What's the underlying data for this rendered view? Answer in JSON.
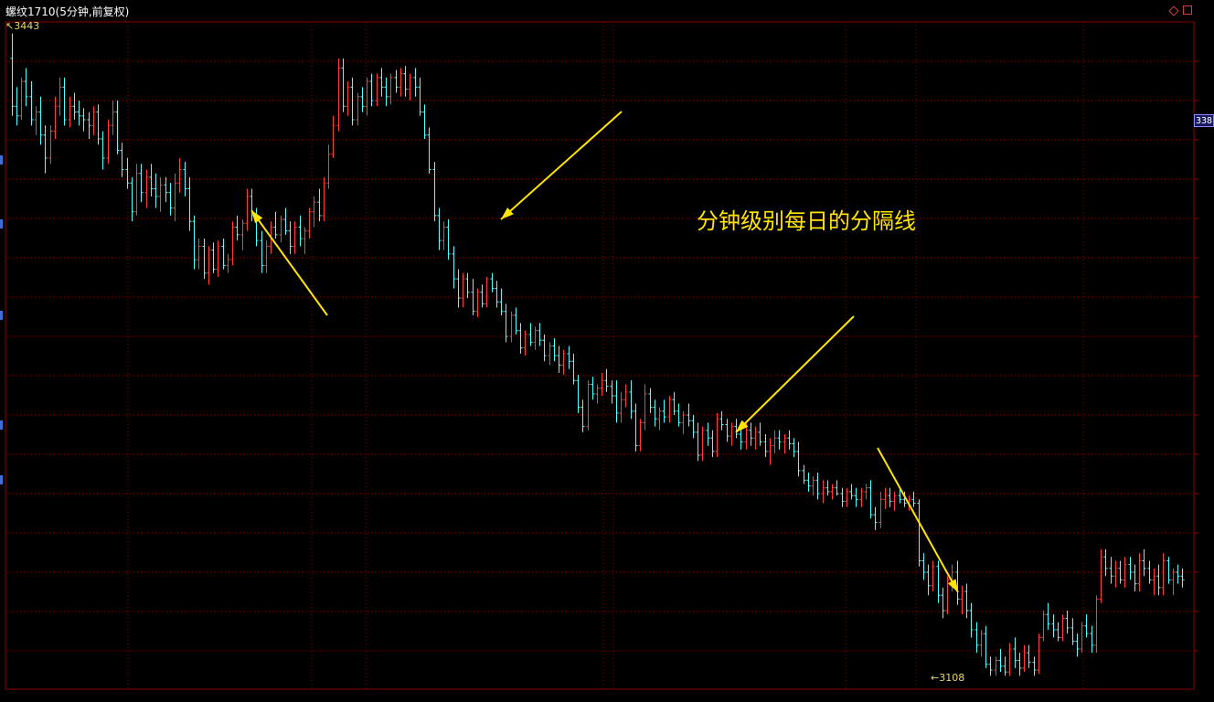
{
  "header": {
    "title": "螺纹1710(5分钟,前复权)",
    "high_marker": "3443",
    "low_marker": "3108",
    "price_tag": "338"
  },
  "annotation": {
    "text": "分钟级别每日的分隔线"
  },
  "colors": {
    "up": "#ff3b3b",
    "down": "#54ffff",
    "flat": "#ffffff",
    "grid": "#8b0000",
    "arrow": "#ffe600",
    "background": "#000000"
  },
  "chart_data": {
    "type": "ohlc",
    "title": "螺纹1710(5分钟,前复权)",
    "ylim": [
      3101,
      3449
    ],
    "day_separators_after_bar": [
      62,
      125,
      188
    ],
    "highest": 3443,
    "lowest": 3108,
    "bars": [
      [
        3430,
        3443,
        3400,
        3405
      ],
      [
        3405,
        3415,
        3395,
        3400
      ],
      [
        3400,
        3420,
        3398,
        3418
      ],
      [
        3418,
        3425,
        3405,
        3410
      ],
      [
        3410,
        3418,
        3395,
        3398
      ],
      [
        3398,
        3405,
        3390,
        3402
      ],
      [
        3402,
        3410,
        3385,
        3390
      ],
      [
        3390,
        3395,
        3370,
        3378
      ],
      [
        3378,
        3395,
        3375,
        3392
      ],
      [
        3392,
        3410,
        3388,
        3405
      ],
      [
        3405,
        3420,
        3400,
        3415
      ],
      [
        3415,
        3420,
        3395,
        3398
      ],
      [
        3398,
        3410,
        3394,
        3405
      ],
      [
        3405,
        3412,
        3398,
        3402
      ],
      [
        3402,
        3408,
        3395,
        3400
      ],
      [
        3400,
        3404,
        3392,
        3398
      ],
      [
        3398,
        3402,
        3388,
        3395
      ],
      [
        3395,
        3405,
        3390,
        3402
      ],
      [
        3402,
        3406,
        3385,
        3388
      ],
      [
        3388,
        3392,
        3372,
        3378
      ],
      [
        3378,
        3398,
        3375,
        3395
      ],
      [
        3395,
        3408,
        3390,
        3402
      ],
      [
        3402,
        3408,
        3380,
        3382
      ],
      [
        3382,
        3386,
        3368,
        3372
      ],
      [
        3372,
        3378,
        3362,
        3365
      ],
      [
        3365,
        3368,
        3345,
        3350
      ],
      [
        3350,
        3375,
        3348,
        3370
      ],
      [
        3370,
        3375,
        3355,
        3360
      ],
      [
        3360,
        3372,
        3352,
        3368
      ],
      [
        3368,
        3375,
        3358,
        3362
      ],
      [
        3362,
        3370,
        3352,
        3358
      ],
      [
        3358,
        3368,
        3350,
        3364
      ],
      [
        3364,
        3368,
        3355,
        3360
      ],
      [
        3360,
        3365,
        3348,
        3352
      ],
      [
        3352,
        3370,
        3345,
        3365
      ],
      [
        3365,
        3378,
        3360,
        3372
      ],
      [
        3372,
        3376,
        3358,
        3362
      ],
      [
        3362,
        3368,
        3340,
        3345
      ],
      [
        3345,
        3348,
        3320,
        3325
      ],
      [
        3325,
        3336,
        3320,
        3332
      ],
      [
        3332,
        3336,
        3315,
        3318
      ],
      [
        3318,
        3332,
        3312,
        3330
      ],
      [
        3330,
        3334,
        3318,
        3320
      ],
      [
        3320,
        3335,
        3316,
        3332
      ],
      [
        3332,
        3336,
        3320,
        3322
      ],
      [
        3322,
        3328,
        3318,
        3325
      ],
      [
        3325,
        3345,
        3322,
        3342
      ],
      [
        3342,
        3348,
        3335,
        3338
      ],
      [
        3338,
        3346,
        3330,
        3344
      ],
      [
        3344,
        3362,
        3340,
        3358
      ],
      [
        3358,
        3362,
        3345,
        3348
      ],
      [
        3348,
        3352,
        3332,
        3335
      ],
      [
        3335,
        3340,
        3318,
        3322
      ],
      [
        3322,
        3335,
        3318,
        3332
      ],
      [
        3332,
        3345,
        3328,
        3342
      ],
      [
        3342,
        3350,
        3336,
        3338
      ],
      [
        3338,
        3348,
        3334,
        3346
      ],
      [
        3346,
        3352,
        3338,
        3340
      ],
      [
        3340,
        3345,
        3328,
        3332
      ],
      [
        3332,
        3345,
        3328,
        3342
      ],
      [
        3342,
        3348,
        3332,
        3336
      ],
      [
        3336,
        3342,
        3328,
        3340
      ],
      [
        3340,
        3352,
        3336,
        3350
      ],
      [
        3350,
        3358,
        3342,
        3355
      ],
      [
        3355,
        3362,
        3345,
        3348
      ],
      [
        3348,
        3368,
        3345,
        3365
      ],
      [
        3365,
        3385,
        3362,
        3380
      ],
      [
        3380,
        3400,
        3378,
        3395
      ],
      [
        3395,
        3430,
        3392,
        3425
      ],
      [
        3425,
        3430,
        3402,
        3405
      ],
      [
        3405,
        3418,
        3400,
        3415
      ],
      [
        3415,
        3420,
        3395,
        3398
      ],
      [
        3398,
        3412,
        3395,
        3410
      ],
      [
        3410,
        3415,
        3402,
        3405
      ],
      [
        3405,
        3420,
        3400,
        3418
      ],
      [
        3418,
        3422,
        3405,
        3408
      ],
      [
        3408,
        3422,
        3405,
        3420
      ],
      [
        3420,
        3425,
        3410,
        3415
      ],
      [
        3415,
        3420,
        3405,
        3410
      ],
      [
        3410,
        3422,
        3406,
        3420
      ],
      [
        3420,
        3424,
        3412,
        3415
      ],
      [
        3415,
        3425,
        3410,
        3422
      ],
      [
        3422,
        3426,
        3410,
        3414
      ],
      [
        3414,
        3422,
        3408,
        3420
      ],
      [
        3420,
        3425,
        3410,
        3415
      ],
      [
        3415,
        3420,
        3400,
        3402
      ],
      [
        3402,
        3406,
        3388,
        3390
      ],
      [
        3390,
        3394,
        3370,
        3372
      ],
      [
        3372,
        3376,
        3345,
        3348
      ],
      [
        3348,
        3352,
        3330,
        3335
      ],
      [
        3335,
        3345,
        3330,
        3342
      ],
      [
        3342,
        3346,
        3325,
        3328
      ],
      [
        3328,
        3332,
        3310,
        3315
      ],
      [
        3315,
        3320,
        3300,
        3305
      ],
      [
        3305,
        3318,
        3300,
        3315
      ],
      [
        3315,
        3318,
        3305,
        3308
      ],
      [
        3308,
        3315,
        3296,
        3298
      ],
      [
        3298,
        3310,
        3295,
        3308
      ],
      [
        3308,
        3312,
        3300,
        3302
      ],
      [
        3302,
        3316,
        3300,
        3315
      ],
      [
        3315,
        3318,
        3308,
        3310
      ],
      [
        3310,
        3314,
        3300,
        3303
      ],
      [
        3303,
        3310,
        3296,
        3298
      ],
      [
        3298,
        3302,
        3282,
        3285
      ],
      [
        3285,
        3298,
        3282,
        3296
      ],
      [
        3296,
        3300,
        3286,
        3288
      ],
      [
        3288,
        3292,
        3276,
        3279
      ],
      [
        3279,
        3288,
        3275,
        3286
      ],
      [
        3286,
        3292,
        3280,
        3282
      ],
      [
        3282,
        3290,
        3278,
        3288
      ],
      [
        3288,
        3292,
        3280,
        3283
      ],
      [
        3283,
        3286,
        3272,
        3275
      ],
      [
        3275,
        3282,
        3270,
        3280
      ],
      [
        3280,
        3284,
        3272,
        3275
      ],
      [
        3275,
        3280,
        3266,
        3270
      ],
      [
        3270,
        3278,
        3265,
        3276
      ],
      [
        3276,
        3280,
        3268,
        3272
      ],
      [
        3272,
        3276,
        3260,
        3262
      ],
      [
        3262,
        3265,
        3245,
        3248
      ],
      [
        3248,
        3252,
        3235,
        3238
      ],
      [
        3238,
        3262,
        3236,
        3260
      ],
      [
        3260,
        3264,
        3252,
        3255
      ],
      [
        3255,
        3260,
        3250,
        3258
      ],
      [
        3258,
        3266,
        3254,
        3262
      ],
      [
        3262,
        3268,
        3256,
        3259
      ],
      [
        3259,
        3262,
        3250,
        3254
      ],
      [
        3254,
        3262,
        3240,
        3245
      ],
      [
        3245,
        3256,
        3240,
        3252
      ],
      [
        3252,
        3260,
        3248,
        3256
      ],
      [
        3256,
        3262,
        3242,
        3246
      ],
      [
        3246,
        3250,
        3225,
        3228
      ],
      [
        3228,
        3242,
        3225,
        3240
      ],
      [
        3240,
        3260,
        3236,
        3255
      ],
      [
        3255,
        3258,
        3245,
        3248
      ],
      [
        3248,
        3252,
        3238,
        3242
      ],
      [
        3242,
        3248,
        3236,
        3246
      ],
      [
        3246,
        3252,
        3240,
        3243
      ],
      [
        3243,
        3254,
        3240,
        3252
      ],
      [
        3252,
        3256,
        3244,
        3246
      ],
      [
        3246,
        3250,
        3238,
        3240
      ],
      [
        3240,
        3246,
        3234,
        3244
      ],
      [
        3244,
        3250,
        3238,
        3241
      ],
      [
        3241,
        3244,
        3232,
        3235
      ],
      [
        3235,
        3240,
        3220,
        3223
      ],
      [
        3223,
        3238,
        3220,
        3236
      ],
      [
        3236,
        3240,
        3228,
        3232
      ],
      [
        3232,
        3236,
        3222,
        3225
      ],
      [
        3225,
        3245,
        3222,
        3242
      ],
      [
        3242,
        3246,
        3236,
        3239
      ],
      [
        3239,
        3242,
        3230,
        3233
      ],
      [
        3233,
        3240,
        3228,
        3238
      ],
      [
        3238,
        3242,
        3232,
        3234
      ],
      [
        3234,
        3238,
        3226,
        3230
      ],
      [
        3230,
        3240,
        3226,
        3236
      ],
      [
        3236,
        3240,
        3228,
        3232
      ],
      [
        3232,
        3238,
        3226,
        3235
      ],
      [
        3235,
        3240,
        3228,
        3230
      ],
      [
        3230,
        3234,
        3222,
        3225
      ],
      [
        3225,
        3232,
        3218,
        3228
      ],
      [
        3228,
        3236,
        3224,
        3232
      ],
      [
        3232,
        3236,
        3226,
        3230
      ],
      [
        3230,
        3234,
        3224,
        3232
      ],
      [
        3232,
        3236,
        3226,
        3229
      ],
      [
        3229,
        3232,
        3222,
        3225
      ],
      [
        3225,
        3230,
        3212,
        3215
      ],
      [
        3215,
        3218,
        3208,
        3210
      ],
      [
        3210,
        3214,
        3204,
        3207
      ],
      [
        3207,
        3212,
        3202,
        3210
      ],
      [
        3210,
        3214,
        3200,
        3203
      ],
      [
        3203,
        3210,
        3198,
        3206
      ],
      [
        3206,
        3210,
        3202,
        3204
      ],
      [
        3204,
        3208,
        3200,
        3206
      ],
      [
        3206,
        3210,
        3202,
        3203
      ],
      [
        3203,
        3206,
        3196,
        3199
      ],
      [
        3199,
        3206,
        3196,
        3204
      ],
      [
        3204,
        3208,
        3200,
        3202
      ],
      [
        3202,
        3206,
        3196,
        3200
      ],
      [
        3200,
        3206,
        3196,
        3204
      ],
      [
        3204,
        3208,
        3200,
        3206
      ],
      [
        3206,
        3210,
        3190,
        3192
      ],
      [
        3192,
        3196,
        3184,
        3188
      ],
      [
        3188,
        3204,
        3185,
        3200
      ],
      [
        3200,
        3206,
        3195,
        3202
      ],
      [
        3202,
        3206,
        3196,
        3199
      ],
      [
        3199,
        3204,
        3194,
        3202
      ],
      [
        3202,
        3206,
        3198,
        3200
      ],
      [
        3200,
        3204,
        3196,
        3198
      ],
      [
        3198,
        3202,
        3194,
        3200
      ],
      [
        3200,
        3204,
        3196,
        3198
      ],
      [
        3198,
        3200,
        3165,
        3168
      ],
      [
        3168,
        3172,
        3158,
        3162
      ],
      [
        3162,
        3166,
        3150,
        3155
      ],
      [
        3155,
        3168,
        3152,
        3165
      ],
      [
        3165,
        3168,
        3146,
        3150
      ],
      [
        3150,
        3154,
        3138,
        3142
      ],
      [
        3142,
        3160,
        3140,
        3158
      ],
      [
        3158,
        3166,
        3152,
        3162
      ],
      [
        3162,
        3168,
        3145,
        3148
      ],
      [
        3148,
        3155,
        3140,
        3152
      ],
      [
        3152,
        3156,
        3138,
        3142
      ],
      [
        3142,
        3146,
        3128,
        3132
      ],
      [
        3132,
        3136,
        3120,
        3124
      ],
      [
        3124,
        3132,
        3118,
        3130
      ],
      [
        3130,
        3134,
        3112,
        3114
      ],
      [
        3114,
        3118,
        3108,
        3111
      ],
      [
        3111,
        3118,
        3108,
        3116
      ],
      [
        3116,
        3122,
        3110,
        3113
      ],
      [
        3113,
        3118,
        3108,
        3110
      ],
      [
        3110,
        3125,
        3108,
        3122
      ],
      [
        3122,
        3128,
        3112,
        3116
      ],
      [
        3116,
        3120,
        3108,
        3112
      ],
      [
        3112,
        3124,
        3110,
        3120
      ],
      [
        3120,
        3124,
        3112,
        3115
      ],
      [
        3115,
        3118,
        3108,
        3111
      ],
      [
        3111,
        3130,
        3109,
        3128
      ],
      [
        3128,
        3142,
        3126,
        3140
      ],
      [
        3140,
        3146,
        3132,
        3135
      ],
      [
        3135,
        3140,
        3128,
        3132
      ],
      [
        3132,
        3136,
        3126,
        3128
      ],
      [
        3128,
        3140,
        3126,
        3138
      ],
      [
        3138,
        3142,
        3130,
        3133
      ],
      [
        3133,
        3138,
        3124,
        3126
      ],
      [
        3126,
        3130,
        3118,
        3122
      ],
      [
        3122,
        3136,
        3120,
        3134
      ],
      [
        3134,
        3140,
        3128,
        3130
      ],
      [
        3130,
        3134,
        3120,
        3124
      ],
      [
        3124,
        3150,
        3120,
        3148
      ],
      [
        3148,
        3174,
        3146,
        3170
      ],
      [
        3170,
        3174,
        3160,
        3164
      ],
      [
        3164,
        3170,
        3156,
        3160
      ],
      [
        3160,
        3168,
        3154,
        3164
      ],
      [
        3164,
        3168,
        3156,
        3158
      ],
      [
        3158,
        3170,
        3154,
        3166
      ],
      [
        3166,
        3170,
        3158,
        3162
      ],
      [
        3162,
        3166,
        3152,
        3156
      ],
      [
        3156,
        3172,
        3152,
        3168
      ],
      [
        3168,
        3174,
        3160,
        3164
      ],
      [
        3164,
        3168,
        3156,
        3158
      ],
      [
        3158,
        3164,
        3150,
        3160
      ],
      [
        3160,
        3166,
        3150,
        3154
      ],
      [
        3154,
        3172,
        3150,
        3168
      ],
      [
        3168,
        3170,
        3156,
        3158
      ],
      [
        3158,
        3164,
        3150,
        3162
      ],
      [
        3162,
        3166,
        3156,
        3160
      ],
      [
        3160,
        3164,
        3154,
        3158
      ]
    ]
  }
}
